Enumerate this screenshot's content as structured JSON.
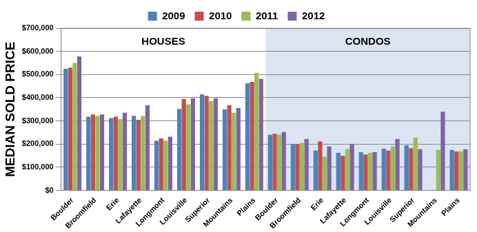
{
  "chart_data": {
    "type": "bar",
    "y_label": "MEDIAN SOLD PRICE",
    "groups": [
      {
        "name": "HOUSES",
        "categories": [
          "Boulder",
          "Broomfield",
          "Erie",
          "Lafayette",
          "Longmont",
          "Louisville",
          "Superior",
          "Mountains",
          "Plains"
        ]
      },
      {
        "name": "CONDOS",
        "color": "#dbe5f1",
        "categories": [
          "Boulder",
          "Broomfield",
          "Erie",
          "Lafayette",
          "Longmont",
          "Louisville",
          "Superior",
          "Mountains",
          "Plains"
        ]
      }
    ],
    "series": [
      {
        "name": "2009",
        "color": "#4f81bd",
        "values": [
          525000,
          318000,
          312000,
          322000,
          215000,
          352000,
          415000,
          350000,
          462000,
          240000,
          200000,
          172000,
          162000,
          165000,
          180000,
          195000,
          null,
          175000
        ]
      },
      {
        "name": "2010",
        "color": "#c0504d",
        "values": [
          530000,
          328000,
          318000,
          305000,
          225000,
          395000,
          408000,
          368000,
          468000,
          245000,
          198000,
          212000,
          150000,
          155000,
          172000,
          182000,
          null,
          168000
        ]
      },
      {
        "name": "2011",
        "color": "#9bbb59",
        "values": [
          550000,
          322000,
          308000,
          322000,
          215000,
          372000,
          385000,
          335000,
          508000,
          240000,
          205000,
          145000,
          178000,
          162000,
          190000,
          228000,
          175000,
          170000
        ]
      },
      {
        "name": "2012",
        "color": "#8064a2",
        "values": [
          578000,
          328000,
          335000,
          368000,
          232000,
          398000,
          398000,
          355000,
          482000,
          252000,
          222000,
          190000,
          200000,
          165000,
          222000,
          178000,
          340000,
          178000
        ]
      }
    ],
    "ylim": [
      0,
      700000
    ],
    "yticks": [
      {
        "value": 0,
        "label": "$0"
      },
      {
        "value": 100000,
        "label": "$100,000"
      },
      {
        "value": 200000,
        "label": "$200,000"
      },
      {
        "value": 300000,
        "label": "$300,000"
      },
      {
        "value": 400000,
        "label": "$400,000"
      },
      {
        "value": 500000,
        "label": "$500,000"
      },
      {
        "value": 600000,
        "label": "$600,000"
      },
      {
        "value": 700000,
        "label": "$700,000"
      }
    ],
    "grid": true,
    "legend": "top"
  }
}
